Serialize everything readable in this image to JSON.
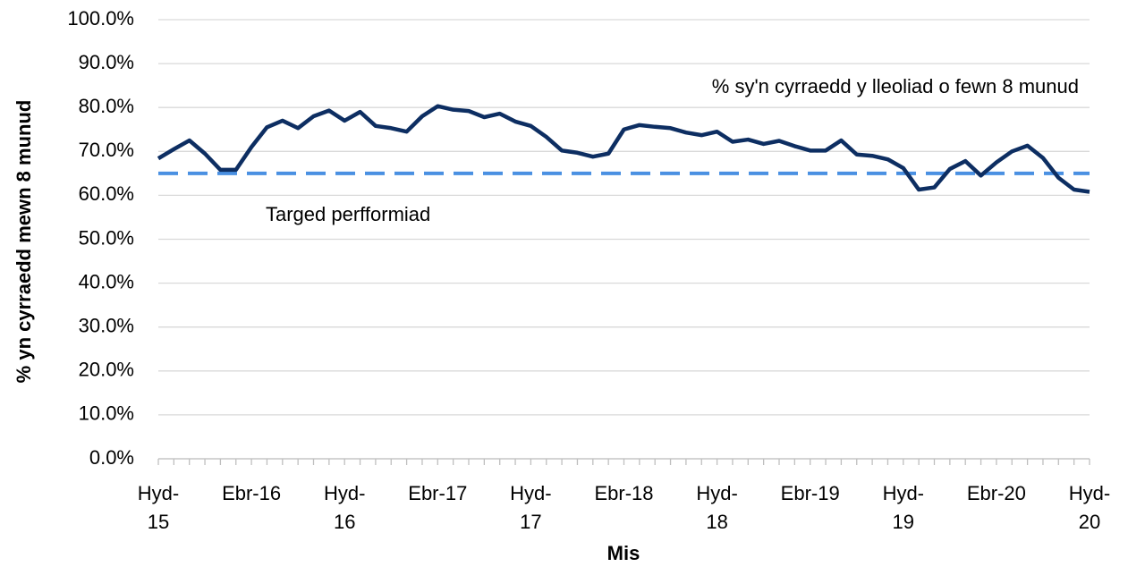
{
  "chart_data": {
    "type": "line",
    "x_label": "Mis",
    "y_label": "% yn cyrraedd mewn 8 munud",
    "categories": [
      "Hyd-15",
      null,
      null,
      null,
      null,
      null,
      "Ebr-16",
      null,
      null,
      null,
      null,
      null,
      "Hyd-16",
      null,
      null,
      null,
      null,
      null,
      "Ebr-17",
      null,
      null,
      null,
      null,
      null,
      "Hyd-17",
      null,
      null,
      null,
      null,
      null,
      "Ebr-18",
      null,
      null,
      null,
      null,
      null,
      "Hyd-18",
      null,
      null,
      null,
      null,
      null,
      "Ebr-19",
      null,
      null,
      null,
      null,
      null,
      "Hyd-19",
      null,
      null,
      null,
      null,
      null,
      "Ebr-20",
      null,
      null,
      null,
      null,
      null,
      "Hyd-20"
    ],
    "series": [
      {
        "name": "% sy'n cyrraedd y lleoliad o fewn 8 munud",
        "color": "#0d2e62",
        "values": [
          68.4,
          70.5,
          72.5,
          69.5,
          65.8,
          65.8,
          71,
          75.5,
          77,
          75.3,
          78,
          79.3,
          77,
          79,
          75.8,
          75.3,
          74.5,
          78,
          80.3,
          79.5,
          79.2,
          77.8,
          78.6,
          76.8,
          75.8,
          73.3,
          70.2,
          69.7,
          68.8,
          69.5,
          75,
          76,
          75.6,
          75.3,
          74.3,
          73.7,
          74.5,
          72.2,
          72.7,
          71.7,
          72.4,
          71.2,
          70.2,
          70.2,
          72.5,
          69.3,
          69,
          68.2,
          66.2,
          61.3,
          61.8,
          66,
          67.8,
          64.5,
          67.5,
          70,
          71.3,
          68.5,
          64,
          61.3,
          60.8
        ]
      }
    ],
    "target": {
      "label": "Targed perfformiad",
      "value": 65,
      "color": "#4a90e2"
    },
    "ylim": [
      0,
      100
    ],
    "yticks": [
      {
        "value": 0,
        "label": "0.0%"
      },
      {
        "value": 10,
        "label": "10.0%"
      },
      {
        "value": 20,
        "label": "20.0%"
      },
      {
        "value": 30,
        "label": "30.0%"
      },
      {
        "value": 40,
        "label": "40.0%"
      },
      {
        "value": 50,
        "label": "50.0%"
      },
      {
        "value": 60,
        "label": "60.0%"
      },
      {
        "value": 70,
        "label": "70.0%"
      },
      {
        "value": 80,
        "label": "80.0%"
      },
      {
        "value": 90,
        "label": "90.0%"
      },
      {
        "value": 100,
        "label": "100.0%"
      }
    ],
    "grid": true
  }
}
